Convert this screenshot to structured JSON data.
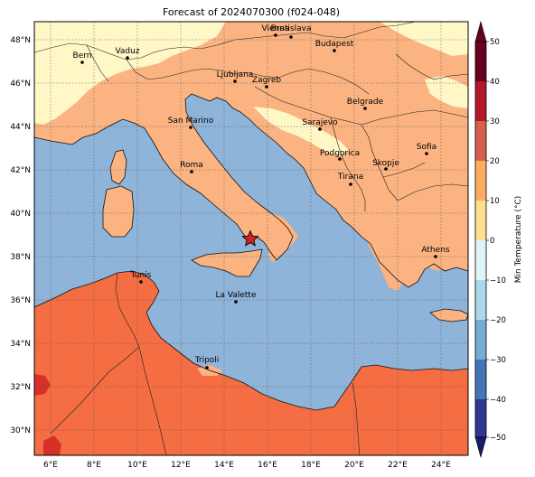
{
  "title": "Forecast of 2024070300 (f024-048)",
  "map": {
    "lon_ticks": [
      "6°E",
      "8°E",
      "10°E",
      "12°E",
      "14°E",
      "16°E",
      "18°E",
      "20°E",
      "22°E",
      "24°E"
    ],
    "lat_ticks": [
      "30°N",
      "32°N",
      "34°N",
      "36°N",
      "38°N",
      "40°N",
      "42°N",
      "44°N",
      "46°N",
      "48°N"
    ],
    "cities": [
      {
        "name": "Bern"
      },
      {
        "name": "Vaduz"
      },
      {
        "name": "Vienna"
      },
      {
        "name": "Bratislava"
      },
      {
        "name": "Budapest"
      },
      {
        "name": "Ljubljana"
      },
      {
        "name": "Zagreb"
      },
      {
        "name": "Belgrade"
      },
      {
        "name": "San Marino"
      },
      {
        "name": "Sarajevo"
      },
      {
        "name": "Sofia"
      },
      {
        "name": "Roma"
      },
      {
        "name": "Podgorica"
      },
      {
        "name": "Skopje"
      },
      {
        "name": "Tirana"
      },
      {
        "name": "Athens"
      },
      {
        "name": "Tunis"
      },
      {
        "name": "La Valette"
      },
      {
        "name": "Tripoli"
      }
    ],
    "marker": {
      "type": "star",
      "color": "#d62020"
    },
    "colors": {
      "sea": "#8fb4d9",
      "warm_light": "#fbb381",
      "warm_mid": "#f46d43",
      "warm_dark": "#d73027",
      "cool_pale": "#fff7c6"
    }
  },
  "colorbar": {
    "label": "Min Temperature (°C)",
    "ticks": [
      "50",
      "40",
      "30",
      "20",
      "10",
      "0",
      "−10",
      "−20",
      "−30",
      "−40",
      "−50"
    ],
    "bands": [
      "#67001f",
      "#b2182b",
      "#d6604d",
      "#f46d43",
      "#fdae61",
      "#fee090",
      "#e0f3f8",
      "#abd9e9",
      "#74add1",
      "#4575b4",
      "#313695"
    ]
  }
}
